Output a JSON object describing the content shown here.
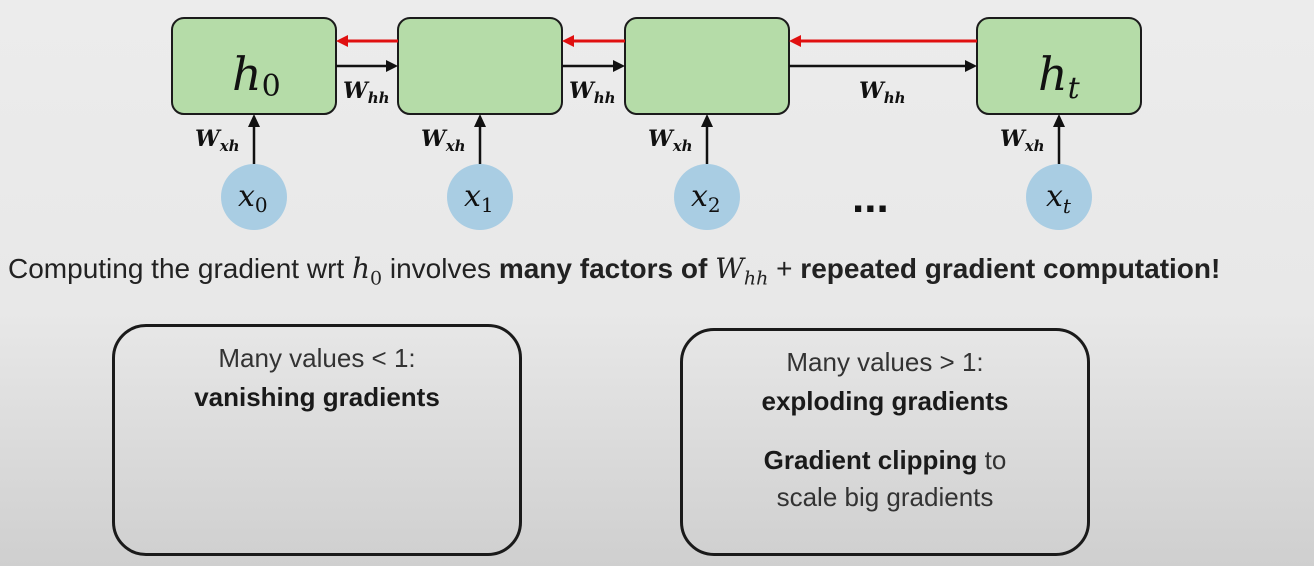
{
  "diagram": {
    "hidden_states": [
      "h",
      "",
      "",
      "h"
    ],
    "hidden_subs": [
      "0",
      "",
      "",
      "t"
    ],
    "inputs": [
      "x",
      "x",
      "x",
      "x"
    ],
    "input_subs": [
      "0",
      "1",
      "2",
      "t"
    ],
    "weight_hh": "W",
    "weight_hh_sub": "hh",
    "weight_xh": "W",
    "weight_xh_sub": "xh",
    "ellipsis": "...",
    "colors": {
      "cell_fill": "#b5dca8",
      "input_fill": "#a9cde3",
      "backprop_arrow": "#e01010"
    }
  },
  "statement": {
    "part1": "Computing the gradient wrt ",
    "h_symbol": "h",
    "h_sub": "0",
    "part2": " involves ",
    "bold1": "many factors of ",
    "w_symbol": "W",
    "w_sub": "hh",
    "plus": " + ",
    "bold2": "repeated gradient computation!"
  },
  "left_box": {
    "line1": "Many values < 1:",
    "line2": "vanishing gradients"
  },
  "right_box": {
    "line1": "Many values > 1:",
    "line2": "exploding gradients",
    "line3_bold": "Gradient clipping",
    "line3_rest": " to",
    "line4": "scale big gradients"
  }
}
